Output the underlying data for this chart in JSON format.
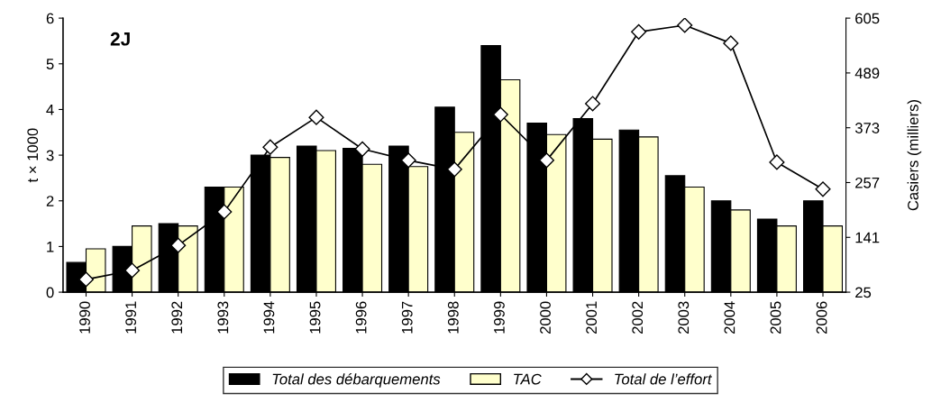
{
  "chart_data": {
    "type": "bar",
    "title": "2J",
    "ylabel": "t × 1000",
    "y2label": "Casiers (milliers)",
    "categories": [
      "1990",
      "1991",
      "1992",
      "1993",
      "1994",
      "1995",
      "1996",
      "1997",
      "1998",
      "1999",
      "2000",
      "2001",
      "2002",
      "2003",
      "2004",
      "2005",
      "2006"
    ],
    "series": [
      {
        "name": "Total des débarquements",
        "color": "#000000",
        "values": [
          0.65,
          1.0,
          1.5,
          2.3,
          3.0,
          3.2,
          3.15,
          3.2,
          4.05,
          5.4,
          3.7,
          3.8,
          3.55,
          2.55,
          2.0,
          1.6,
          2.0
        ]
      },
      {
        "name": "TAC",
        "color": "#ffffcc",
        "values": [
          0.95,
          1.45,
          1.45,
          2.3,
          2.95,
          3.1,
          2.8,
          2.75,
          3.5,
          4.65,
          3.45,
          3.35,
          3.4,
          2.3,
          1.8,
          1.45,
          1.45
        ]
      },
      {
        "name": "Total de l’effort",
        "type": "line",
        "axis": "y2",
        "color": "#000000",
        "marker": "diamond",
        "values": [
          52,
          71,
          124,
          195,
          332,
          395,
          328,
          304,
          285,
          401,
          304,
          424,
          576,
          590,
          552,
          300,
          243
        ]
      }
    ],
    "ylim": [
      0,
      6
    ],
    "yticks": [
      0,
      1,
      2,
      3,
      4,
      5,
      6
    ],
    "y2lim": [
      25,
      605
    ],
    "y2ticks": [
      25,
      141,
      257,
      373,
      489,
      605
    ],
    "grid": false,
    "legend": "bottom"
  }
}
